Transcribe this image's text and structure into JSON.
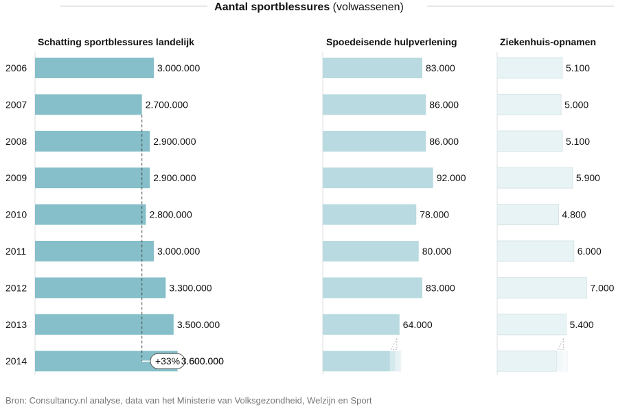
{
  "chart_data": {
    "type": "bar",
    "title": "Aantal sportblessures",
    "title_suffix": "(volwassenen)",
    "categories": [
      "2006",
      "2007",
      "2008",
      "2009",
      "2010",
      "2011",
      "2012",
      "2013",
      "2014"
    ],
    "panels": [
      {
        "name": "Schatting sportblessures landelijk",
        "color": "#86bfc9",
        "values": [
          3000000,
          2700000,
          2900000,
          2900000,
          2800000,
          3000000,
          3300000,
          3500000,
          3600000
        ],
        "value_labels": [
          "3.000.000",
          "2.700.000",
          "2.900.000",
          "2.900.000",
          "2.800.000",
          "3.000.000",
          "3.300.000",
          "3.500.000",
          "3.600.000"
        ]
      },
      {
        "name": "Spoedeisende hulpverlening",
        "color": "#b8dae0",
        "values": [
          83000,
          86000,
          86000,
          92000,
          78000,
          80000,
          83000,
          64000,
          null
        ],
        "value_labels": [
          "83.000",
          "86.000",
          "86.000",
          "92.000",
          "78.000",
          "80.000",
          "83.000",
          "64.000",
          ""
        ]
      },
      {
        "name": "Ziekenhuis-opnamen",
        "color": "#e8f3f5",
        "values": [
          5100,
          5000,
          5100,
          5900,
          4800,
          6000,
          7000,
          5400,
          null
        ],
        "value_labels": [
          "5.100",
          "5.000",
          "5.100",
          "5.900",
          "4.800",
          "6.000",
          "7.000",
          "5.400",
          ""
        ]
      }
    ],
    "annotation": "+33%",
    "gridlines": false,
    "legend": "none"
  },
  "source": "Bron: Consultancy.nl analyse, data van het Ministerie van Volksgezondheid, Welzijn en Sport"
}
